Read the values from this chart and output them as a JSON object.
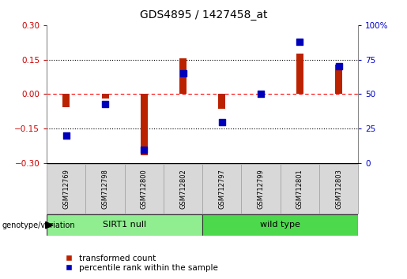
{
  "title": "GDS4895 / 1427458_at",
  "samples": [
    "GSM712769",
    "GSM712798",
    "GSM712800",
    "GSM712802",
    "GSM712797",
    "GSM712799",
    "GSM712801",
    "GSM712803"
  ],
  "transformed_count": [
    -0.055,
    -0.02,
    -0.265,
    0.155,
    -0.065,
    0.005,
    0.175,
    0.13
  ],
  "percentile_rank": [
    20,
    43,
    10,
    65,
    30,
    50,
    88,
    70
  ],
  "groups": [
    {
      "label": "SIRT1 null",
      "start": 0,
      "end": 4,
      "color": "#90EE90"
    },
    {
      "label": "wild type",
      "start": 4,
      "end": 8,
      "color": "#4CD94C"
    }
  ],
  "bar_color": "#BB2200",
  "dot_color": "#0000BB",
  "ylim_left": [
    -0.3,
    0.3
  ],
  "ylim_right": [
    0,
    100
  ],
  "yticks_left": [
    -0.3,
    -0.15,
    0.0,
    0.15,
    0.3
  ],
  "yticks_right": [
    0,
    25,
    50,
    75,
    100
  ],
  "ylabel_left_color": "#CC0000",
  "ylabel_right_color": "#0000CC",
  "legend_labels": [
    "transformed count",
    "percentile rank within the sample"
  ],
  "genotype_label": "genotype/variation",
  "background_color": "#ffffff",
  "bar_width": 0.18,
  "dot_size": 30,
  "label_box_color": "#d8d8d8",
  "label_box_edge": "#aaaaaa"
}
